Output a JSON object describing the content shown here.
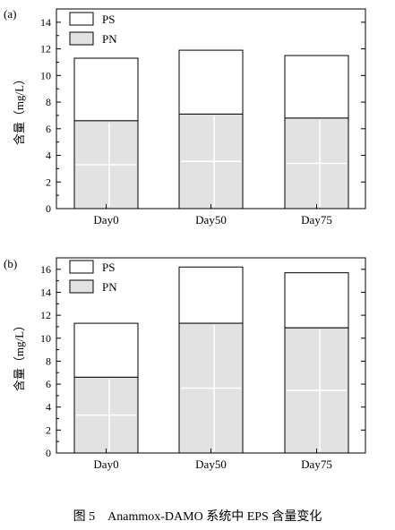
{
  "caption": "图 5　Anammox-DAMO 系统中 EPS 含量变化",
  "chart_data": [
    {
      "type": "bar",
      "stacked": true,
      "panel_label": "(a)",
      "categories": [
        "Day0",
        "Day50",
        "Day75"
      ],
      "series": [
        {
          "name": "PN",
          "values": [
            6.6,
            7.1,
            6.8
          ],
          "color": "#e2e2e2"
        },
        {
          "name": "PS",
          "values": [
            4.7,
            4.8,
            4.7
          ],
          "color": "#ffffff"
        }
      ],
      "ylabel": "含量（mg/L）",
      "ylim": [
        0,
        15
      ],
      "yticks": [
        0,
        2,
        4,
        6,
        8,
        10,
        12,
        14
      ],
      "legend_position": "top-left"
    },
    {
      "type": "bar",
      "stacked": true,
      "panel_label": "(b)",
      "categories": [
        "Day0",
        "Day50",
        "Day75"
      ],
      "series": [
        {
          "name": "PN",
          "values": [
            6.6,
            11.3,
            10.9
          ],
          "color": "#e2e2e2"
        },
        {
          "name": "PS",
          "values": [
            4.7,
            4.9,
            4.8
          ],
          "color": "#ffffff"
        }
      ],
      "ylabel": "含量（mg/L）",
      "ylim": [
        0,
        17
      ],
      "yticks": [
        0,
        2,
        4,
        6,
        8,
        10,
        12,
        14,
        16
      ],
      "legend_position": "top-left"
    }
  ]
}
